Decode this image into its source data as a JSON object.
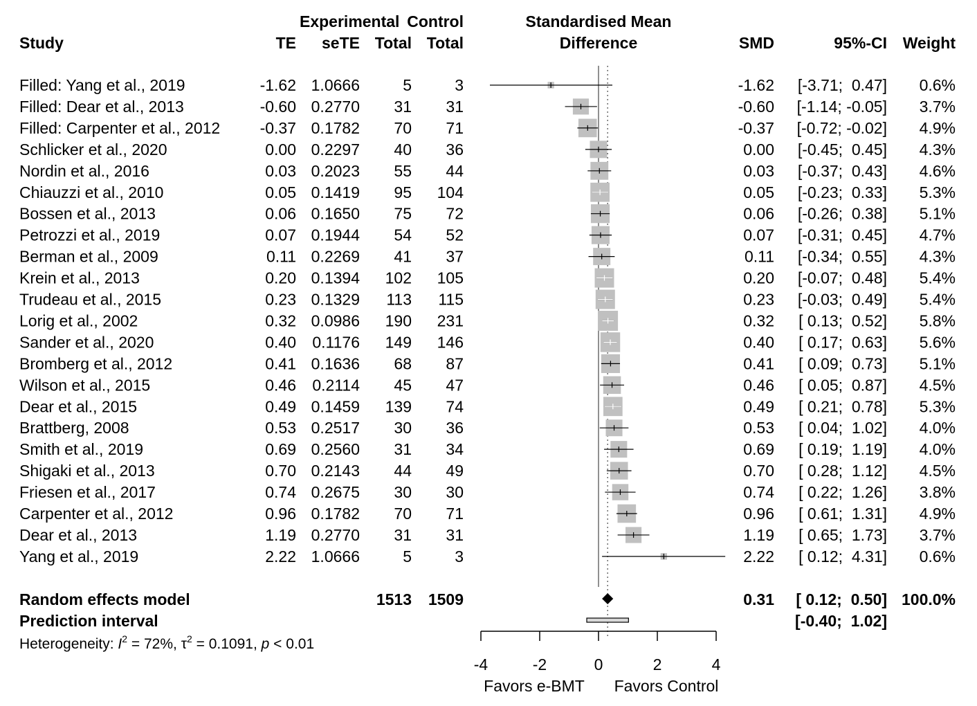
{
  "headers": {
    "study": "Study",
    "te": "TE",
    "sete": "seTE",
    "exp_top": "Experimental",
    "exp_bottom": "Total",
    "ctrl_top": "Control",
    "ctrl_bottom": "Total",
    "plot_top": "Standardised Mean",
    "plot_bottom": "Difference",
    "smd": "SMD",
    "ci": "95%-CI",
    "weight": "Weight"
  },
  "chart_data": {
    "type": "forest",
    "xlim": [
      -4,
      4
    ],
    "xticks": [
      "-4",
      "-2",
      "0",
      "2",
      "4"
    ],
    "reference_line": 0,
    "pooled_line": 0.31,
    "xlabel_left": "Favors e-BMT",
    "xlabel_right": "Favors Control",
    "studies": [
      {
        "name": "Filled: Yang et al., 2019",
        "te": "-1.62",
        "sete": "1.0666",
        "exp_total": "5",
        "ctrl_total": "3",
        "smd_text": "-1.62",
        "ci_text": "[-3.71;  0.47]",
        "weight_text": "0.6%",
        "smd": -1.62,
        "lo": -3.71,
        "hi": 0.47,
        "weight": 0.6
      },
      {
        "name": "Filled: Dear et al., 2013",
        "te": "-0.60",
        "sete": "0.2770",
        "exp_total": "31",
        "ctrl_total": "31",
        "smd_text": "-0.60",
        "ci_text": "[-1.14; -0.05]",
        "weight_text": "3.7%",
        "smd": -0.6,
        "lo": -1.14,
        "hi": -0.05,
        "weight": 3.7
      },
      {
        "name": "Filled: Carpenter et al., 2012",
        "te": "-0.37",
        "sete": "0.1782",
        "exp_total": "70",
        "ctrl_total": "71",
        "smd_text": "-0.37",
        "ci_text": "[-0.72; -0.02]",
        "weight_text": "4.9%",
        "smd": -0.37,
        "lo": -0.72,
        "hi": -0.02,
        "weight": 4.9
      },
      {
        "name": "Schlicker et al., 2020",
        "te": "0.00",
        "sete": "0.2297",
        "exp_total": "40",
        "ctrl_total": "36",
        "smd_text": "0.00",
        "ci_text": "[-0.45;  0.45]",
        "weight_text": "4.3%",
        "smd": 0.0,
        "lo": -0.45,
        "hi": 0.45,
        "weight": 4.3
      },
      {
        "name": "Nordin et al., 2016",
        "te": "0.03",
        "sete": "0.2023",
        "exp_total": "55",
        "ctrl_total": "44",
        "smd_text": "0.03",
        "ci_text": "[-0.37;  0.43]",
        "weight_text": "4.6%",
        "smd": 0.03,
        "lo": -0.37,
        "hi": 0.43,
        "weight": 4.6
      },
      {
        "name": "Chiauzzi et al., 2010",
        "te": "0.05",
        "sete": "0.1419",
        "exp_total": "95",
        "ctrl_total": "104",
        "smd_text": "0.05",
        "ci_text": "[-0.23;  0.33]",
        "weight_text": "5.3%",
        "smd": 0.05,
        "lo": -0.23,
        "hi": 0.33,
        "weight": 5.3
      },
      {
        "name": "Bossen et al., 2013",
        "te": "0.06",
        "sete": "0.1650",
        "exp_total": "75",
        "ctrl_total": "72",
        "smd_text": "0.06",
        "ci_text": "[-0.26;  0.38]",
        "weight_text": "5.1%",
        "smd": 0.06,
        "lo": -0.26,
        "hi": 0.38,
        "weight": 5.1
      },
      {
        "name": "Petrozzi et al., 2019",
        "te": "0.07",
        "sete": "0.1944",
        "exp_total": "54",
        "ctrl_total": "52",
        "smd_text": "0.07",
        "ci_text": "[-0.31;  0.45]",
        "weight_text": "4.7%",
        "smd": 0.07,
        "lo": -0.31,
        "hi": 0.45,
        "weight": 4.7
      },
      {
        "name": "Berman et al., 2009",
        "te": "0.11",
        "sete": "0.2269",
        "exp_total": "41",
        "ctrl_total": "37",
        "smd_text": "0.11",
        "ci_text": "[-0.34;  0.55]",
        "weight_text": "4.3%",
        "smd": 0.11,
        "lo": -0.34,
        "hi": 0.55,
        "weight": 4.3
      },
      {
        "name": "Krein et al., 2013",
        "te": "0.20",
        "sete": "0.1394",
        "exp_total": "102",
        "ctrl_total": "105",
        "smd_text": "0.20",
        "ci_text": "[-0.07;  0.48]",
        "weight_text": "5.4%",
        "smd": 0.2,
        "lo": -0.07,
        "hi": 0.48,
        "weight": 5.4
      },
      {
        "name": "Trudeau et al., 2015",
        "te": "0.23",
        "sete": "0.1329",
        "exp_total": "113",
        "ctrl_total": "115",
        "smd_text": "0.23",
        "ci_text": "[-0.03;  0.49]",
        "weight_text": "5.4%",
        "smd": 0.23,
        "lo": -0.03,
        "hi": 0.49,
        "weight": 5.4
      },
      {
        "name": "Lorig et al., 2002",
        "te": "0.32",
        "sete": "0.0986",
        "exp_total": "190",
        "ctrl_total": "231",
        "smd_text": "0.32",
        "ci_text": "[ 0.13;  0.52]",
        "weight_text": "5.8%",
        "smd": 0.32,
        "lo": 0.13,
        "hi": 0.52,
        "weight": 5.8
      },
      {
        "name": "Sander et al., 2020",
        "te": "0.40",
        "sete": "0.1176",
        "exp_total": "149",
        "ctrl_total": "146",
        "smd_text": "0.40",
        "ci_text": "[ 0.17;  0.63]",
        "weight_text": "5.6%",
        "smd": 0.4,
        "lo": 0.17,
        "hi": 0.63,
        "weight": 5.6
      },
      {
        "name": "Bromberg et al., 2012",
        "te": "0.41",
        "sete": "0.1636",
        "exp_total": "68",
        "ctrl_total": "87",
        "smd_text": "0.41",
        "ci_text": "[ 0.09;  0.73]",
        "weight_text": "5.1%",
        "smd": 0.41,
        "lo": 0.09,
        "hi": 0.73,
        "weight": 5.1
      },
      {
        "name": "Wilson et al., 2015",
        "te": "0.46",
        "sete": "0.2114",
        "exp_total": "45",
        "ctrl_total": "47",
        "smd_text": "0.46",
        "ci_text": "[ 0.05;  0.87]",
        "weight_text": "4.5%",
        "smd": 0.46,
        "lo": 0.05,
        "hi": 0.87,
        "weight": 4.5
      },
      {
        "name": "Dear et al., 2015",
        "te": "0.49",
        "sete": "0.1459",
        "exp_total": "139",
        "ctrl_total": "74",
        "smd_text": "0.49",
        "ci_text": "[ 0.21;  0.78]",
        "weight_text": "5.3%",
        "smd": 0.49,
        "lo": 0.21,
        "hi": 0.78,
        "weight": 5.3
      },
      {
        "name": "Brattberg, 2008",
        "te": "0.53",
        "sete": "0.2517",
        "exp_total": "30",
        "ctrl_total": "36",
        "smd_text": "0.53",
        "ci_text": "[ 0.04;  1.02]",
        "weight_text": "4.0%",
        "smd": 0.53,
        "lo": 0.04,
        "hi": 1.02,
        "weight": 4.0
      },
      {
        "name": "Smith et al., 2019",
        "te": "0.69",
        "sete": "0.2560",
        "exp_total": "31",
        "ctrl_total": "34",
        "smd_text": "0.69",
        "ci_text": "[ 0.19;  1.19]",
        "weight_text": "4.0%",
        "smd": 0.69,
        "lo": 0.19,
        "hi": 1.19,
        "weight": 4.0
      },
      {
        "name": "Shigaki et al., 2013",
        "te": "0.70",
        "sete": "0.2143",
        "exp_total": "44",
        "ctrl_total": "49",
        "smd_text": "0.70",
        "ci_text": "[ 0.28;  1.12]",
        "weight_text": "4.5%",
        "smd": 0.7,
        "lo": 0.28,
        "hi": 1.12,
        "weight": 4.5
      },
      {
        "name": "Friesen et al., 2017",
        "te": "0.74",
        "sete": "0.2675",
        "exp_total": "30",
        "ctrl_total": "30",
        "smd_text": "0.74",
        "ci_text": "[ 0.22;  1.26]",
        "weight_text": "3.8%",
        "smd": 0.74,
        "lo": 0.22,
        "hi": 1.26,
        "weight": 3.8
      },
      {
        "name": "Carpenter et al., 2012",
        "te": "0.96",
        "sete": "0.1782",
        "exp_total": "70",
        "ctrl_total": "71",
        "smd_text": "0.96",
        "ci_text": "[ 0.61;  1.31]",
        "weight_text": "4.9%",
        "smd": 0.96,
        "lo": 0.61,
        "hi": 1.31,
        "weight": 4.9
      },
      {
        "name": "Dear et al., 2013",
        "te": "1.19",
        "sete": "0.2770",
        "exp_total": "31",
        "ctrl_total": "31",
        "smd_text": "1.19",
        "ci_text": "[ 0.65;  1.73]",
        "weight_text": "3.7%",
        "smd": 1.19,
        "lo": 0.65,
        "hi": 1.73,
        "weight": 3.7
      },
      {
        "name": "Yang et al., 2019",
        "te": "2.22",
        "sete": "1.0666",
        "exp_total": "5",
        "ctrl_total": "3",
        "smd_text": "2.22",
        "ci_text": "[ 0.12;  4.31]",
        "weight_text": "0.6%",
        "smd": 2.22,
        "lo": 0.12,
        "hi": 4.31,
        "weight": 0.6
      }
    ],
    "summary": {
      "label": "Random effects model",
      "exp_total": "1513",
      "ctrl_total": "1509",
      "smd_text": "0.31",
      "ci_text": "[ 0.12;  0.50]",
      "weight_text": "100.0%",
      "smd": 0.31,
      "lo": 0.12,
      "hi": 0.5
    },
    "prediction": {
      "label": "Prediction interval",
      "ci_text": "[-0.40;  1.02]",
      "lo": -0.4,
      "hi": 1.02
    },
    "heterogeneity": {
      "prefix": "Heterogeneity: ",
      "i2_symbol": "I",
      "i2_value": " = 72%, ",
      "tau_symbol": "τ",
      "tau_value": " = 0.1091, ",
      "p_symbol": "p",
      "p_value": " < 0.01",
      "superscript": "2"
    }
  }
}
